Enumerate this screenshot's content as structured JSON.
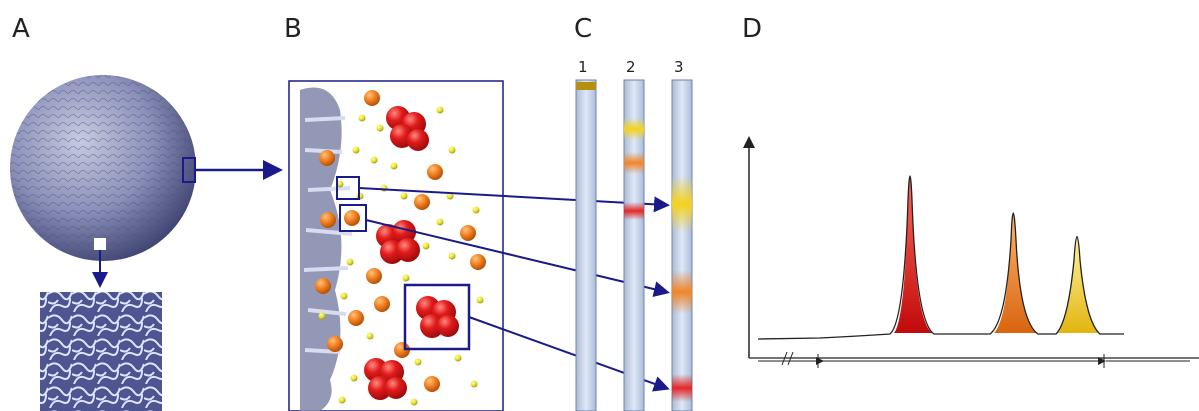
{
  "labels": {
    "a": "A",
    "b": "B",
    "c": "C",
    "d": "D"
  },
  "columns": [
    "1",
    "2",
    "3"
  ],
  "colors": {
    "frame": "#1a1a8a",
    "arrow": "#1a1a8a",
    "bead": "#8a90b8",
    "large_particle": "#e11b1b",
    "medium_particle": "#f07c1e",
    "small_particle": "#e7e12a",
    "column": "#c9d6ea",
    "band_red": "#e52626",
    "band_orange": "#f0862a",
    "band_yellow": "#f5d21e"
  }
}
